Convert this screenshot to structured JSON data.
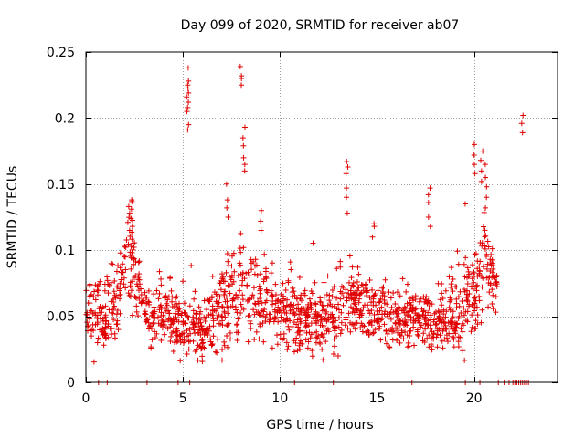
{
  "chart_data": {
    "type": "scatter",
    "title": "Day 099 of 2020, SRMTID for receiver ab07",
    "xlabel": "GPS time / hours",
    "ylabel": "SRMTID / TECUs",
    "xlim": [
      0,
      24.3
    ],
    "ylim": [
      0,
      0.25
    ],
    "x_ticks": [
      0,
      5,
      10,
      15,
      20
    ],
    "x_tick_labels": [
      "0",
      "5",
      "10",
      "15",
      "20"
    ],
    "y_ticks": [
      0,
      0.05,
      0.1,
      0.15,
      0.2,
      0.25
    ],
    "y_tick_labels": [
      "0",
      "0.05",
      "0.1",
      "0.15",
      "0.2",
      "0.25"
    ],
    "grid": true,
    "marker": "+",
    "series_color": "#e00000",
    "envelope": [
      {
        "t": 0.0,
        "base": 0.055,
        "spread": 0.022
      },
      {
        "t": 0.5,
        "base": 0.05,
        "spread": 0.025
      },
      {
        "t": 1.0,
        "base": 0.045,
        "spread": 0.02
      },
      {
        "t": 1.5,
        "base": 0.06,
        "spread": 0.025
      },
      {
        "t": 2.0,
        "base": 0.085,
        "spread": 0.03
      },
      {
        "t": 2.4,
        "base": 0.09,
        "spread": 0.035
      },
      {
        "t": 2.8,
        "base": 0.065,
        "spread": 0.022
      },
      {
        "t": 3.5,
        "base": 0.05,
        "spread": 0.022
      },
      {
        "t": 4.0,
        "base": 0.055,
        "spread": 0.025
      },
      {
        "t": 4.5,
        "base": 0.05,
        "spread": 0.025
      },
      {
        "t": 5.0,
        "base": 0.04,
        "spread": 0.015
      },
      {
        "t": 5.5,
        "base": 0.045,
        "spread": 0.02
      },
      {
        "t": 6.0,
        "base": 0.04,
        "spread": 0.018
      },
      {
        "t": 7.0,
        "base": 0.055,
        "spread": 0.03
      },
      {
        "t": 8.0,
        "base": 0.07,
        "spread": 0.035
      },
      {
        "t": 9.0,
        "base": 0.065,
        "spread": 0.03
      },
      {
        "t": 10.0,
        "base": 0.055,
        "spread": 0.025
      },
      {
        "t": 11.0,
        "base": 0.05,
        "spread": 0.025
      },
      {
        "t": 12.0,
        "base": 0.045,
        "spread": 0.022
      },
      {
        "t": 13.0,
        "base": 0.055,
        "spread": 0.025
      },
      {
        "t": 14.0,
        "base": 0.06,
        "spread": 0.025
      },
      {
        "t": 15.0,
        "base": 0.05,
        "spread": 0.022
      },
      {
        "t": 16.0,
        "base": 0.045,
        "spread": 0.02
      },
      {
        "t": 17.0,
        "base": 0.05,
        "spread": 0.022
      },
      {
        "t": 18.0,
        "base": 0.045,
        "spread": 0.02
      },
      {
        "t": 19.0,
        "base": 0.05,
        "spread": 0.025
      },
      {
        "t": 20.0,
        "base": 0.065,
        "spread": 0.035
      },
      {
        "t": 20.5,
        "base": 0.09,
        "spread": 0.04
      },
      {
        "t": 21.0,
        "base": 0.075,
        "spread": 0.025
      },
      {
        "t": 21.2,
        "base": 0.08,
        "spread": 0.015
      }
    ],
    "spikes": [
      {
        "x": 5.25,
        "values": [
          0.238,
          0.228,
          0.225,
          0.222,
          0.219,
          0.216,
          0.212,
          0.208,
          0.205,
          0.195,
          0.191
        ]
      },
      {
        "x": 8.0,
        "values": [
          0.239,
          0.232,
          0.23,
          0.225
        ]
      },
      {
        "x": 8.15,
        "values": [
          0.193,
          0.185,
          0.179,
          0.17,
          0.165,
          0.16
        ]
      },
      {
        "x": 7.3,
        "values": [
          0.15,
          0.138,
          0.132,
          0.125
        ]
      },
      {
        "x": 2.2,
        "values": [
          0.133,
          0.128,
          0.121,
          0.115
        ]
      },
      {
        "x": 2.35,
        "values": [
          0.138,
          0.131,
          0.124,
          0.118
        ]
      },
      {
        "x": 9.0,
        "values": [
          0.13,
          0.122,
          0.115
        ]
      },
      {
        "x": 13.45,
        "values": [
          0.167,
          0.163,
          0.158,
          0.147,
          0.14,
          0.128
        ]
      },
      {
        "x": 14.8,
        "values": [
          0.12,
          0.118,
          0.11
        ]
      },
      {
        "x": 17.7,
        "values": [
          0.147,
          0.142,
          0.136,
          0.125,
          0.118
        ]
      },
      {
        "x": 19.6,
        "values": [
          0.135
        ]
      },
      {
        "x": 20.05,
        "values": [
          0.18,
          0.172,
          0.165,
          0.158
        ]
      },
      {
        "x": 20.4,
        "values": [
          0.175,
          0.168,
          0.16,
          0.152
        ]
      },
      {
        "x": 20.6,
        "values": [
          0.165,
          0.155,
          0.148,
          0.14,
          0.132
        ]
      },
      {
        "x": 22.5,
        "values": [
          0.202,
          0.196,
          0.189
        ]
      }
    ],
    "zero_points_x": [
      0.65,
      1.1,
      3.15,
      4.75,
      5.35,
      10.75,
      12.75,
      16.8,
      19.55,
      20.3,
      21.25,
      21.55,
      21.8,
      22.0,
      22.1,
      22.2,
      22.3,
      22.4,
      22.5,
      22.6,
      22.7,
      22.8
    ]
  }
}
